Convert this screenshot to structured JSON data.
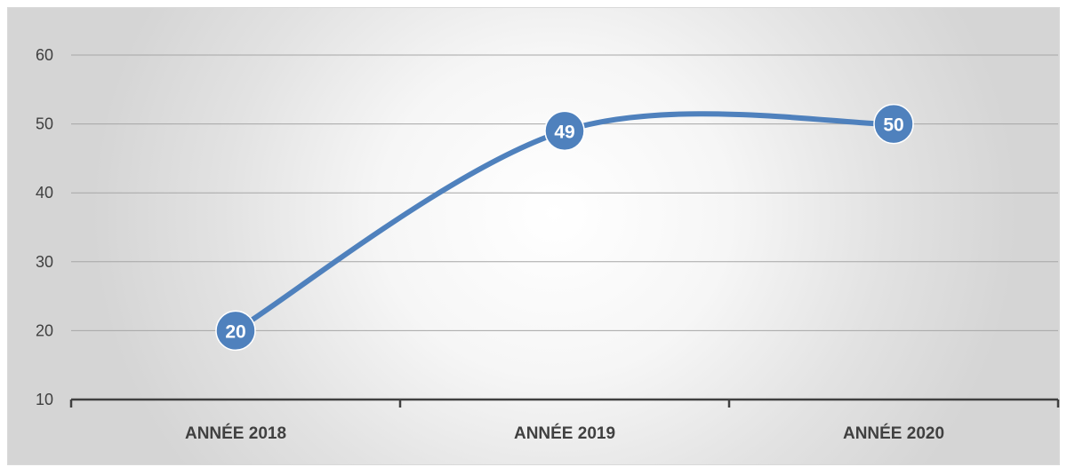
{
  "chart_data": {
    "type": "line",
    "title": "",
    "xlabel": "",
    "ylabel": "",
    "categories": [
      "ANNÉE 2018",
      "ANNÉE 2019",
      "ANNÉE 2020"
    ],
    "series": [
      {
        "values": [
          20,
          49,
          50
        ],
        "color": "#4f81bd",
        "smooth": true
      }
    ],
    "ylim": [
      10,
      60
    ],
    "yticks": [
      10,
      20,
      30,
      40,
      50,
      60
    ],
    "grid": true,
    "legend": "none",
    "data_labels": [
      "20",
      "49",
      "50"
    ],
    "colors": {
      "line": "#4f81bd",
      "label_text": "#ffffff",
      "grid": "#a6a6a6",
      "axis": "#404040"
    }
  }
}
